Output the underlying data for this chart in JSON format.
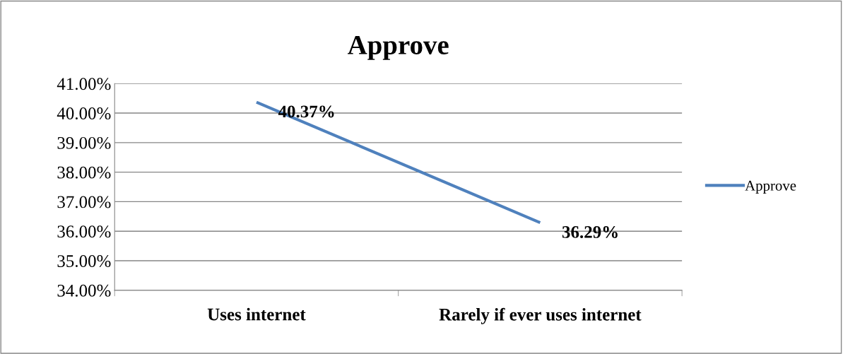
{
  "chart_data": {
    "type": "line",
    "title": "Approve",
    "categories": [
      "Uses internet",
      "Rarely if ever uses internet"
    ],
    "series": [
      {
        "name": "Approve",
        "color": "#4f81bd",
        "values": [
          40.37,
          36.29
        ],
        "value_labels": [
          "40.37%",
          "36.29%"
        ]
      }
    ],
    "ylim": [
      34,
      41
    ],
    "yticks": [
      {
        "value": 34,
        "label": "34.00%"
      },
      {
        "value": 35,
        "label": "35.00%"
      },
      {
        "value": 36,
        "label": "36.00%"
      },
      {
        "value": 37,
        "label": "37.00%"
      },
      {
        "value": 38,
        "label": "38.00%"
      },
      {
        "value": 39,
        "label": "39.00%"
      },
      {
        "value": 40,
        "label": "40.00%"
      },
      {
        "value": 41,
        "label": "41.00%"
      }
    ],
    "grid": "y",
    "legend": "right",
    "marker": "none",
    "line_style": "solid"
  }
}
